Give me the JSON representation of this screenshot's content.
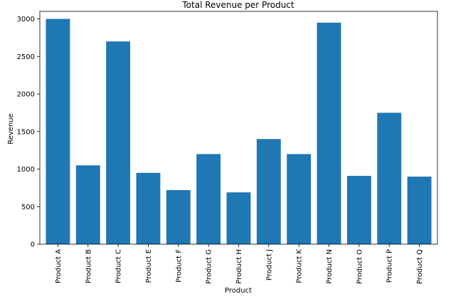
{
  "chart_data": {
    "type": "bar",
    "title": "Total Revenue per Product",
    "xlabel": "Product",
    "ylabel": "Revenue",
    "categories": [
      "Product A",
      "Product B",
      "Product C",
      "Product E",
      "Product F",
      "Product G",
      "Product H",
      "Product J",
      "Product K",
      "Product N",
      "Product O",
      "Product P",
      "Product Q"
    ],
    "values": [
      3000,
      1050,
      2700,
      950,
      720,
      1200,
      690,
      1400,
      1200,
      2950,
      910,
      1750,
      900
    ],
    "ylim": [
      0,
      3100
    ],
    "yticks": [
      0,
      500,
      1000,
      1500,
      2000,
      2500,
      3000
    ],
    "bar_color": "#1f77b4",
    "grid": false
  }
}
